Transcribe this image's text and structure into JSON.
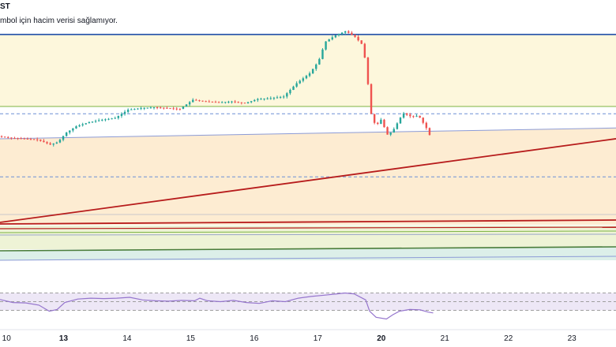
{
  "header": {
    "symbol_fragment": "ST",
    "volume_notice": "mbol için hacim verisi sağlamıyor."
  },
  "colors": {
    "bull": "#26a69a",
    "bear": "#ef5350",
    "rsi_line": "#9575cd",
    "rsi_band": "#ede7f6",
    "resistance": "#1e4ea8",
    "trend": "#b71c1c",
    "green_line": "#7cb342",
    "blue_line": "#8c9bd6",
    "dashed": "#6b8fd6",
    "zone_yellow": "#fdf7dc",
    "zone_orange": "#fdecd2",
    "zone_green": "#eef3d6",
    "zone_teal": "#dcefe9",
    "axis_text": "#131722"
  },
  "chart_data": {
    "type": "candlestick",
    "x_ticks": [
      {
        "label": "10",
        "t": 0.5,
        "bold": false
      },
      {
        "label": "13",
        "t": 4.9,
        "bold": true
      },
      {
        "label": "14",
        "t": 9.8,
        "bold": false
      },
      {
        "label": "15",
        "t": 14.7,
        "bold": false
      },
      {
        "label": "16",
        "t": 19.6,
        "bold": false
      },
      {
        "label": "17",
        "t": 24.5,
        "bold": false
      },
      {
        "label": "20",
        "t": 29.4,
        "bold": true
      },
      {
        "label": "21",
        "t": 34.3,
        "bold": false
      },
      {
        "label": "22",
        "t": 39.2,
        "bold": false
      },
      {
        "label": "23",
        "t": 44.1,
        "bold": false
      }
    ],
    "x_range": [
      0,
      47.5
    ],
    "price_range": [
      0,
      100
    ],
    "price_path": [
      [
        0,
        32
      ],
      [
        1,
        31
      ],
      [
        2,
        30.5
      ],
      [
        3,
        30
      ],
      [
        4,
        27
      ],
      [
        4.6,
        28.5
      ],
      [
        5.2,
        34
      ],
      [
        6,
        38
      ],
      [
        7,
        40.5
      ],
      [
        8,
        42
      ],
      [
        9,
        43
      ],
      [
        10,
        48
      ],
      [
        11,
        49
      ],
      [
        12,
        49.5
      ],
      [
        13,
        49
      ],
      [
        14,
        48.5
      ],
      [
        15,
        54
      ],
      [
        16,
        53
      ],
      [
        17,
        52.5
      ],
      [
        18,
        53
      ],
      [
        19,
        52
      ],
      [
        20,
        54.5
      ],
      [
        21,
        55
      ],
      [
        22,
        56
      ],
      [
        23,
        64
      ],
      [
        24,
        70
      ],
      [
        24.7,
        77.5
      ],
      [
        25.2,
        89
      ],
      [
        26,
        93
      ],
      [
        26.8,
        95.5
      ],
      [
        27.5,
        92
      ],
      [
        28.1,
        87
      ],
      [
        28.4,
        72
      ],
      [
        28.7,
        46.5
      ],
      [
        29.1,
        38
      ],
      [
        29.5,
        42
      ],
      [
        30,
        33
      ],
      [
        30.4,
        35
      ],
      [
        31.2,
        46
      ],
      [
        31.8,
        44
      ],
      [
        32.4,
        44.5
      ],
      [
        33,
        37
      ],
      [
        33.3,
        32
      ]
    ],
    "rsi_path": [
      [
        0,
        55
      ],
      [
        1,
        48
      ],
      [
        2,
        47
      ],
      [
        3,
        42
      ],
      [
        3.8,
        28
      ],
      [
        4.4,
        32
      ],
      [
        5,
        48
      ],
      [
        6,
        56
      ],
      [
        7,
        58
      ],
      [
        8,
        57
      ],
      [
        9,
        58
      ],
      [
        10,
        60
      ],
      [
        11,
        54
      ],
      [
        12,
        52
      ],
      [
        13,
        51
      ],
      [
        14,
        53
      ],
      [
        15,
        52
      ],
      [
        15.4,
        58
      ],
      [
        16,
        52
      ],
      [
        17,
        50
      ],
      [
        18,
        53
      ],
      [
        19,
        48
      ],
      [
        20,
        46
      ],
      [
        21,
        52
      ],
      [
        22,
        50
      ],
      [
        23,
        58
      ],
      [
        24,
        62
      ],
      [
        25,
        65
      ],
      [
        26,
        68
      ],
      [
        26.6,
        70
      ],
      [
        27.3,
        68
      ],
      [
        28.2,
        54
      ],
      [
        28.5,
        28
      ],
      [
        29,
        14
      ],
      [
        29.8,
        10
      ],
      [
        30.3,
        20
      ],
      [
        30.8,
        28
      ],
      [
        31.6,
        32
      ],
      [
        32.4,
        31
      ],
      [
        33,
        26
      ],
      [
        33.4,
        24
      ]
    ],
    "rsi_levels": {
      "top": 70,
      "middle": 50,
      "bottom": 30
    },
    "levels": {
      "resistance_top": 93.5,
      "green_upper": 50,
      "dashed_upper": 45.6,
      "blue_trend_start": 30.5,
      "blue_trend_end": 37,
      "dashed_lower": 7.5,
      "red_trend_start": -20,
      "red_trend_end": 30.5
    }
  }
}
